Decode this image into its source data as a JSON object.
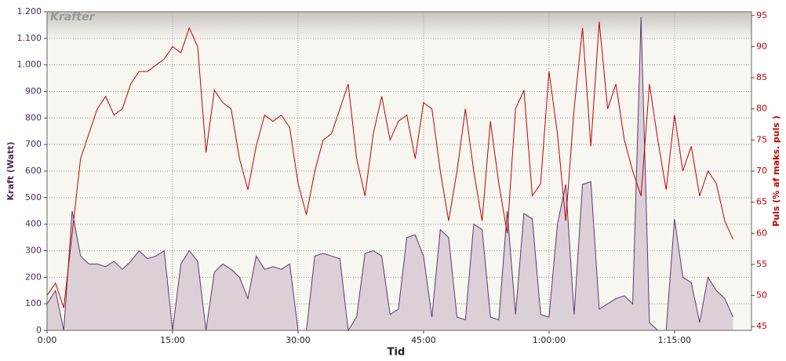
{
  "chart_data": {
    "type": "area-line",
    "title": "Krafter",
    "x_label": "Tid",
    "y_label": "Kraft (Watt)",
    "y2_label": "Puls (% af maks. puls )",
    "x": [
      0,
      1,
      2,
      3,
      4,
      5,
      6,
      7,
      8,
      9,
      10,
      11,
      12,
      13,
      14,
      15,
      16,
      17,
      18,
      19,
      20,
      21,
      22,
      23,
      24,
      25,
      26,
      27,
      28,
      29,
      30,
      31,
      32,
      33,
      34,
      35,
      36,
      37,
      38,
      39,
      40,
      41,
      42,
      43,
      44,
      45,
      46,
      47,
      48,
      49,
      50,
      51,
      52,
      53,
      54,
      55,
      56,
      57,
      58,
      59,
      60,
      61,
      62,
      63,
      64,
      65,
      66,
      67,
      68,
      69,
      70,
      71,
      72,
      73,
      74,
      75,
      76,
      77,
      78,
      79,
      80,
      81,
      82
    ],
    "series": [
      {
        "name": "Kraft",
        "color": "#5a3a6a",
        "fill": "#dcd0d8",
        "axis": "y",
        "values": [
          100,
          150,
          0,
          450,
          280,
          250,
          250,
          240,
          260,
          230,
          260,
          300,
          270,
          280,
          300,
          0,
          250,
          300,
          260,
          0,
          220,
          250,
          230,
          200,
          120,
          280,
          230,
          240,
          230,
          250,
          0,
          0,
          280,
          290,
          280,
          270,
          0,
          50,
          290,
          300,
          280,
          60,
          80,
          350,
          360,
          280,
          50,
          380,
          350,
          50,
          40,
          400,
          380,
          50,
          40,
          450,
          60,
          440,
          420,
          60,
          50,
          400,
          550,
          60,
          550,
          560,
          80,
          100,
          120,
          130,
          100,
          1180,
          30,
          0,
          0,
          420,
          200,
          180,
          30,
          200,
          150,
          120,
          50
        ]
      },
      {
        "name": "Puls",
        "color": "#c00000",
        "axis": "y2",
        "values": [
          50,
          52,
          48,
          60,
          72,
          76,
          80,
          82,
          79,
          80,
          84,
          86,
          86,
          87,
          88,
          90,
          89,
          93,
          90,
          73,
          83,
          81,
          80,
          72,
          67,
          74,
          79,
          78,
          79,
          77,
          68,
          63,
          70,
          75,
          76,
          80,
          84,
          72,
          66,
          76,
          82,
          75,
          78,
          79,
          72,
          81,
          80,
          70,
          62,
          70,
          80,
          70,
          62,
          78,
          68,
          60,
          80,
          83,
          66,
          68,
          86,
          76,
          62,
          80,
          93,
          74,
          94,
          80,
          84,
          75,
          70,
          66,
          84,
          75,
          67,
          79,
          70,
          74,
          66,
          70,
          68,
          62,
          59
        ]
      }
    ],
    "xlim": [
      0,
      84.2
    ],
    "xticks": [
      {
        "value": 0,
        "label": "0:00"
      },
      {
        "value": 15,
        "label": "15:00"
      },
      {
        "value": 30,
        "label": "30:00"
      },
      {
        "value": 45,
        "label": "45:00"
      },
      {
        "value": 60,
        "label": "1:00:00"
      },
      {
        "value": 75,
        "label": "1:15:00"
      }
    ],
    "ylim": [
      0,
      1200
    ],
    "yticks": [
      0,
      100,
      200,
      300,
      400,
      500,
      600,
      700,
      800,
      900,
      {
        "value": 1000,
        "label": "1.000"
      },
      {
        "value": 1100,
        "label": "1.100"
      },
      {
        "value": 1200,
        "label": "1.200"
      }
    ],
    "y2lim": [
      44.4,
      95.6
    ],
    "y2ticks": [
      45,
      50,
      55,
      60,
      65,
      70,
      75,
      80,
      85,
      90,
      95
    ],
    "grid": true
  }
}
